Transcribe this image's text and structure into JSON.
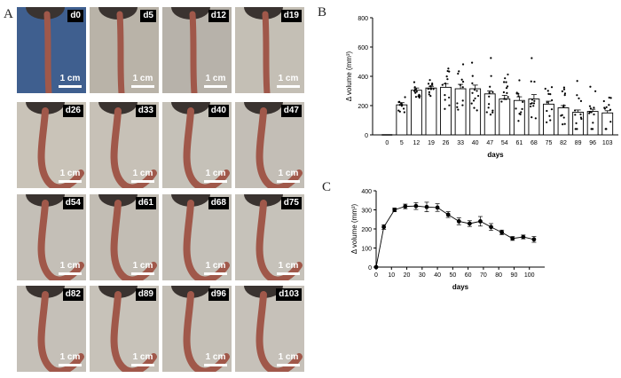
{
  "panel_a": {
    "letter": "A",
    "scale_label": "1 cm",
    "tiles": [
      {
        "day": "d0",
        "bg": "#3f5f8f"
      },
      {
        "day": "d5",
        "bg": "#b9b3a8"
      },
      {
        "day": "d12",
        "bg": "#b7b2aa"
      },
      {
        "day": "d19",
        "bg": "#c4bfb5"
      },
      {
        "day": "d26",
        "bg": "#c9c3b8"
      },
      {
        "day": "d33",
        "bg": "#c7c1b7"
      },
      {
        "day": "d40",
        "bg": "#c5c1b8"
      },
      {
        "day": "d47",
        "bg": "#c3beb6"
      },
      {
        "day": "d54",
        "bg": "#c4bfb7"
      },
      {
        "day": "d61",
        "bg": "#c2bdb4"
      },
      {
        "day": "d68",
        "bg": "#c4c0b8"
      },
      {
        "day": "d75",
        "bg": "#c6c2ba"
      },
      {
        "day": "d82",
        "bg": "#c5c0b8"
      },
      {
        "day": "d89",
        "bg": "#c7c2b9"
      },
      {
        "day": "d96",
        "bg": "#c4bfb6"
      },
      {
        "day": "d103",
        "bg": "#c6c1b9"
      }
    ]
  },
  "chart_data": [
    {
      "panel": "B",
      "type": "bar",
      "title": "",
      "xlabel": "days",
      "ylabel": "Δ volume (mm³)",
      "ylim": [
        0,
        800
      ],
      "yticks": [
        "0",
        "200",
        "400",
        "600",
        "800"
      ],
      "categories": [
        "0",
        "5",
        "12",
        "19",
        "26",
        "33",
        "40",
        "47",
        "54",
        "61",
        "68",
        "75",
        "82",
        "89",
        "96",
        "103"
      ],
      "values": [
        0,
        205,
        305,
        320,
        325,
        315,
        315,
        280,
        245,
        235,
        245,
        210,
        185,
        155,
        160,
        150
      ],
      "errors": [
        0,
        15,
        15,
        12,
        25,
        30,
        25,
        20,
        25,
        25,
        30,
        20,
        15,
        15,
        15,
        15
      ]
    },
    {
      "panel": "C",
      "type": "line",
      "title": "",
      "xlabel": "days",
      "ylabel": "Δ volume (mm³)",
      "xlim": [
        0,
        110
      ],
      "ylim": [
        0,
        400
      ],
      "xticks": [
        "0",
        "10",
        "20",
        "30",
        "40",
        "50",
        "60",
        "70",
        "80",
        "90",
        "100"
      ],
      "yticks": [
        "0",
        "100",
        "200",
        "300",
        "400"
      ],
      "x": [
        0,
        5,
        12,
        19,
        26,
        33,
        40,
        47,
        54,
        61,
        68,
        75,
        82,
        89,
        96,
        103
      ],
      "y": [
        0,
        210,
        300,
        318,
        320,
        315,
        312,
        275,
        240,
        228,
        240,
        210,
        182,
        150,
        158,
        145
      ],
      "errors": [
        0,
        12,
        10,
        12,
        18,
        25,
        20,
        15,
        18,
        15,
        25,
        18,
        12,
        10,
        10,
        15
      ]
    }
  ]
}
